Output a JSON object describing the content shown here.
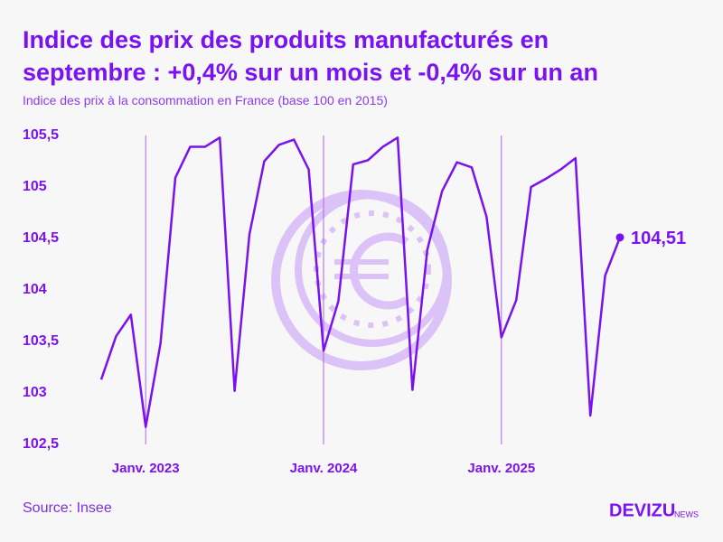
{
  "chart_data": {
    "type": "line",
    "title": "Indice des prix des produits manufacturés en septembre : +0,4% sur un mois et -0,4% sur un an",
    "subtitle": "Indice des prix à la consommation en France (base 100 en 2015)",
    "source": "Source: Insee",
    "brand": "DEVIZU",
    "brand_suffix": "NEWS",
    "categories": [
      null,
      null,
      null,
      "Janv. 2023",
      null,
      null,
      null,
      null,
      null,
      null,
      null,
      null,
      null,
      null,
      null,
      "Janv. 2024",
      null,
      null,
      null,
      null,
      null,
      null,
      null,
      null,
      null,
      null,
      null,
      "Janv. 2025",
      null,
      null,
      null,
      null,
      null,
      null,
      null,
      null
    ],
    "series": [
      {
        "name": "Indice",
        "color": "#7a12f0",
        "values": [
          103.13,
          103.55,
          103.76,
          102.67,
          103.48,
          105.09,
          105.39,
          105.39,
          105.48,
          103.02,
          104.54,
          105.25,
          105.41,
          105.46,
          105.17,
          103.41,
          103.89,
          105.22,
          105.26,
          105.39,
          105.48,
          103.03,
          104.39,
          104.96,
          105.24,
          105.19,
          104.71,
          103.54,
          103.9,
          105.0,
          105.08,
          105.17,
          105.28,
          102.78,
          104.14,
          104.51
        ],
        "value_labels": {
          "35": "104,51"
        }
      }
    ],
    "ylim": [
      102.5,
      105.5
    ],
    "yticks": [
      {
        "value": 102.5,
        "label": "102,5"
      },
      103,
      {
        "value": 103.5,
        "label": "103,5"
      },
      104,
      {
        "value": 104.5,
        "label": "104,5"
      },
      105,
      {
        "value": 105.5,
        "label": "105,5"
      }
    ],
    "grid": true
  }
}
